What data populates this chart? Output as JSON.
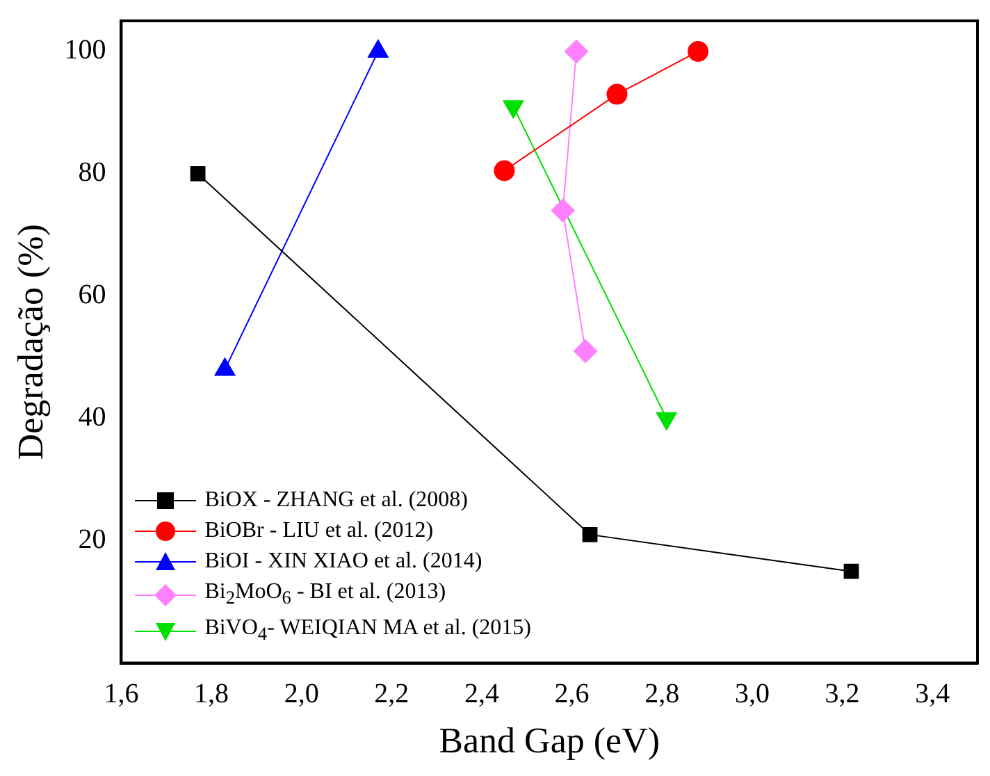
{
  "chart_data": {
    "type": "line",
    "xlabel": "Band Gap (eV)",
    "ylabel": "Degradação (%)",
    "xlim": [
      1.6,
      3.5
    ],
    "xticks": [
      {
        "value": 1.6,
        "label": "1,6"
      },
      {
        "value": 1.8,
        "label": "1,8"
      },
      {
        "value": 2.0,
        "label": "2,0"
      },
      {
        "value": 2.2,
        "label": "2,2"
      },
      {
        "value": 2.4,
        "label": "2,4"
      },
      {
        "value": 2.6,
        "label": "2,6"
      },
      {
        "value": 2.8,
        "label": "2,8"
      },
      {
        "value": 3.0,
        "label": "3,0"
      },
      {
        "value": 3.2,
        "label": "3,2"
      },
      {
        "value": 3.4,
        "label": "3,4"
      }
    ],
    "ylim": [
      0,
      105
    ],
    "yticks": [
      20,
      40,
      60,
      80,
      100
    ],
    "legend": "bottom left",
    "grid": false,
    "line_style": "solid",
    "series": [
      {
        "name": "BiOX - ZHANG et al. (2008)",
        "color": "#000000",
        "marker": "square",
        "x": [
          1.77,
          2.64,
          3.22
        ],
        "values": [
          80,
          21,
          15
        ]
      },
      {
        "name": "BiOBr - LIU et al. (2012)",
        "color": "#ff0000",
        "marker": "circle",
        "x": [
          2.45,
          2.7,
          2.88
        ],
        "values": [
          80.5,
          93,
          100
        ]
      },
      {
        "name": "BiOI - XIN XIAO et al. (2014)",
        "color": "#0000ff",
        "marker": "triangle",
        "x": [
          1.83,
          2.17
        ],
        "values": [
          48,
          100
        ]
      },
      {
        "name": "Bi$_{2}$MoO$_{6}$ - BI et al. (2013)",
        "color": "#ff80ff",
        "marker": "diamond",
        "x": [
          2.61,
          2.58,
          2.63
        ],
        "values": [
          100,
          74,
          51
        ]
      },
      {
        "name": "BiVO$_{4}$- WEIQIAN MA et al. (2015)",
        "color": "#00e000",
        "marker": "triangle_down",
        "x": [
          2.47,
          2.81
        ],
        "values": [
          91,
          40
        ]
      }
    ]
  }
}
